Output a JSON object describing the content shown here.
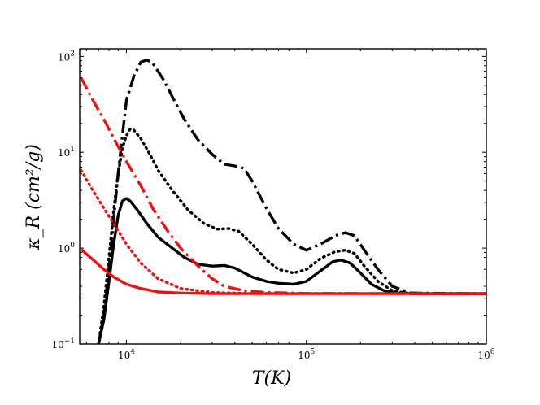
{
  "chart_data": {
    "type": "line",
    "xlabel": "T(K)",
    "ylabel": "κ_R (cm²/g)",
    "xscale": "log",
    "yscale": "log",
    "xlim": [
      5500,
      1000000
    ],
    "ylim": [
      0.1,
      120
    ],
    "x_ticks": [
      {
        "value": 10000,
        "base": "10",
        "exp": "4"
      },
      {
        "value": 100000,
        "base": "10",
        "exp": "5"
      },
      {
        "value": 1000000,
        "base": "10",
        "exp": "6"
      }
    ],
    "y_ticks": [
      {
        "value": 0.1,
        "base": "10",
        "exp": "−1"
      },
      {
        "value": 1,
        "base": "10",
        "exp": "0"
      },
      {
        "value": 10,
        "base": "10",
        "exp": "1"
      },
      {
        "value": 100,
        "base": "10",
        "exp": "2"
      }
    ],
    "grid": false,
    "legend": "none",
    "series": [
      {
        "color": "#000000",
        "dash": "solid",
        "points": [
          [
            7000,
            0.1
          ],
          [
            7500,
            0.18
          ],
          [
            8000,
            0.45
          ],
          [
            8500,
            1.1
          ],
          [
            9000,
            2.2
          ],
          [
            9500,
            3.1
          ],
          [
            10000,
            3.3
          ],
          [
            10500,
            3.1
          ],
          [
            11500,
            2.5
          ],
          [
            13000,
            1.8
          ],
          [
            15000,
            1.3
          ],
          [
            18000,
            1.0
          ],
          [
            21000,
            0.8
          ],
          [
            25000,
            0.68
          ],
          [
            30000,
            0.65
          ],
          [
            35000,
            0.66
          ],
          [
            40000,
            0.62
          ],
          [
            50000,
            0.5
          ],
          [
            60000,
            0.45
          ],
          [
            70000,
            0.43
          ],
          [
            85000,
            0.42
          ],
          [
            100000,
            0.45
          ],
          [
            120000,
            0.58
          ],
          [
            140000,
            0.72
          ],
          [
            155000,
            0.75
          ],
          [
            175000,
            0.7
          ],
          [
            200000,
            0.55
          ],
          [
            230000,
            0.42
          ],
          [
            270000,
            0.36
          ],
          [
            320000,
            0.34
          ],
          [
            400000,
            0.335
          ],
          [
            1000000,
            0.335
          ]
        ]
      },
      {
        "color": "#000000",
        "dash": "dotted",
        "points": [
          [
            7000,
            0.1
          ],
          [
            7500,
            0.25
          ],
          [
            8000,
            0.8
          ],
          [
            8500,
            2.5
          ],
          [
            9000,
            6.0
          ],
          [
            9500,
            11.0
          ],
          [
            10000,
            15.0
          ],
          [
            10500,
            17.5
          ],
          [
            11000,
            17.0
          ],
          [
            12000,
            14.0
          ],
          [
            13500,
            9.5
          ],
          [
            15000,
            6.5
          ],
          [
            18000,
            4.0
          ],
          [
            22000,
            2.5
          ],
          [
            27000,
            1.8
          ],
          [
            32000,
            1.58
          ],
          [
            37000,
            1.6
          ],
          [
            42000,
            1.5
          ],
          [
            50000,
            1.1
          ],
          [
            60000,
            0.75
          ],
          [
            70000,
            0.6
          ],
          [
            85000,
            0.55
          ],
          [
            100000,
            0.6
          ],
          [
            120000,
            0.78
          ],
          [
            145000,
            0.92
          ],
          [
            165000,
            0.95
          ],
          [
            185000,
            0.88
          ],
          [
            210000,
            0.65
          ],
          [
            250000,
            0.45
          ],
          [
            300000,
            0.36
          ],
          [
            380000,
            0.335
          ],
          [
            1000000,
            0.335
          ]
        ]
      },
      {
        "color": "#000000",
        "dash": "dashdot",
        "points": [
          [
            7000,
            0.1
          ],
          [
            7500,
            0.2
          ],
          [
            8000,
            0.6
          ],
          [
            8500,
            2.0
          ],
          [
            9000,
            6.0
          ],
          [
            9500,
            15.0
          ],
          [
            10000,
            35.0
          ],
          [
            11000,
            62.0
          ],
          [
            12000,
            87.0
          ],
          [
            13000,
            92.0
          ],
          [
            14000,
            85.0
          ],
          [
            16000,
            58.0
          ],
          [
            18000,
            38.0
          ],
          [
            21000,
            22.0
          ],
          [
            25000,
            13.5
          ],
          [
            30000,
            9.5
          ],
          [
            35000,
            7.5
          ],
          [
            40000,
            7.2
          ],
          [
            45000,
            6.8
          ],
          [
            50000,
            5.0
          ],
          [
            60000,
            2.6
          ],
          [
            70000,
            1.6
          ],
          [
            85000,
            1.1
          ],
          [
            100000,
            0.95
          ],
          [
            120000,
            1.1
          ],
          [
            145000,
            1.35
          ],
          [
            165000,
            1.45
          ],
          [
            185000,
            1.35
          ],
          [
            210000,
            0.95
          ],
          [
            250000,
            0.6
          ],
          [
            300000,
            0.4
          ],
          [
            380000,
            0.34
          ],
          [
            1000000,
            0.335
          ]
        ]
      },
      {
        "color": "#ee1111",
        "dash": "solid",
        "points": [
          [
            5600,
            0.97
          ],
          [
            6500,
            0.76
          ],
          [
            7500,
            0.6
          ],
          [
            8500,
            0.5
          ],
          [
            10000,
            0.42
          ],
          [
            12000,
            0.38
          ],
          [
            15000,
            0.35
          ],
          [
            20000,
            0.34
          ],
          [
            30000,
            0.335
          ],
          [
            1000000,
            0.335
          ]
        ]
      },
      {
        "color": "#ee1111",
        "dash": "dotted",
        "points": [
          [
            5600,
            6.5
          ],
          [
            6500,
            4.0
          ],
          [
            7500,
            2.6
          ],
          [
            8500,
            1.8
          ],
          [
            10000,
            1.1
          ],
          [
            12000,
            0.7
          ],
          [
            15000,
            0.48
          ],
          [
            20000,
            0.38
          ],
          [
            30000,
            0.345
          ],
          [
            50000,
            0.336
          ],
          [
            1000000,
            0.335
          ]
        ]
      },
      {
        "color": "#ee1111",
        "dash": "dashdot",
        "points": [
          [
            5600,
            60.0
          ],
          [
            6500,
            35.0
          ],
          [
            7500,
            22.0
          ],
          [
            8500,
            14.0
          ],
          [
            10000,
            8.0
          ],
          [
            12000,
            4.5
          ],
          [
            14000,
            2.6
          ],
          [
            17000,
            1.5
          ],
          [
            20000,
            1.0
          ],
          [
            25000,
            0.65
          ],
          [
            30000,
            0.48
          ],
          [
            35000,
            0.4
          ],
          [
            45000,
            0.36
          ],
          [
            60000,
            0.345
          ],
          [
            100000,
            0.337
          ],
          [
            1000000,
            0.335
          ]
        ]
      }
    ]
  }
}
